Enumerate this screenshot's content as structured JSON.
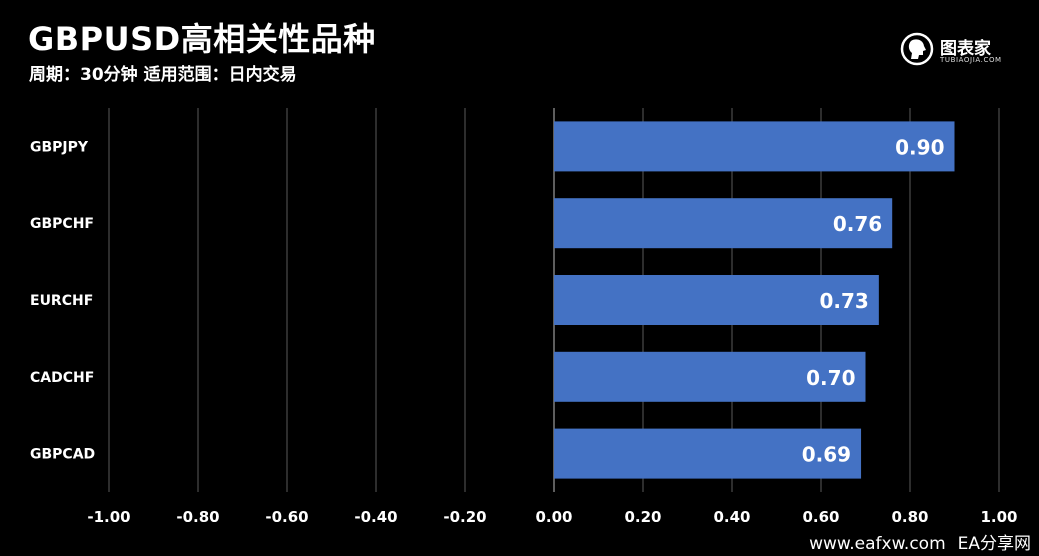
{
  "header": {
    "title": "GBPUSD高相关性品种",
    "subtitle": "周期：30分钟  适用范围：日内交易"
  },
  "logo": {
    "text": "图表家",
    "sub": "TUBIAOJIA.COM",
    "icon": "head-silhouette-icon"
  },
  "footer": {
    "site": "www.eafxw.com",
    "brand": "EA分享网"
  },
  "colors": {
    "background": "#000000",
    "bar": "#4472C4",
    "grid": "#5a5a5a",
    "text": "#ffffff"
  },
  "chart_data": {
    "type": "bar",
    "orientation": "horizontal",
    "categories": [
      "GBPJPY",
      "GBPCHF",
      "EURCHF",
      "CADCHF",
      "GBPCAD"
    ],
    "values": [
      0.9,
      0.76,
      0.73,
      0.7,
      0.69
    ],
    "value_labels": [
      "0.90",
      "0.76",
      "0.73",
      "0.70",
      "0.69"
    ],
    "xlim": [
      -1.0,
      1.0
    ],
    "x_ticks": [
      -1.0,
      -0.8,
      -0.6,
      -0.4,
      -0.2,
      0.0,
      0.2,
      0.4,
      0.6,
      0.8,
      1.0
    ],
    "x_tick_labels": [
      "-1.00",
      "-0.80",
      "-0.60",
      "-0.40",
      "-0.20",
      "0.00",
      "0.20",
      "0.40",
      "0.60",
      "0.80",
      "1.00"
    ],
    "grid": "vertical",
    "legend": "none"
  }
}
